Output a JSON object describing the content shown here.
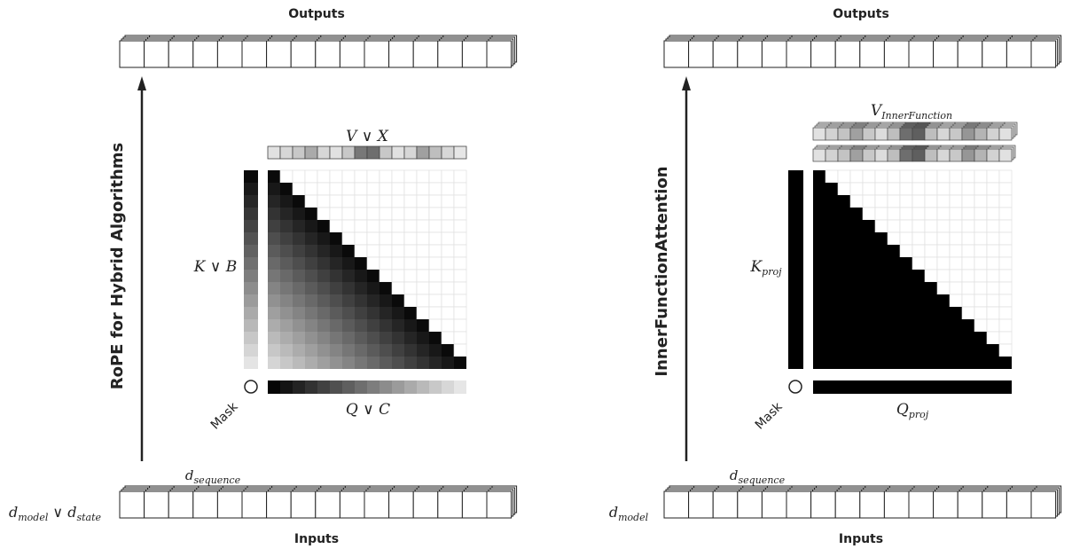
{
  "left": {
    "title": "RoPE for Hybrid Algorithms",
    "outputs": "Outputs",
    "inputs": "Inputs",
    "d_sequence": "d",
    "d_sequence_sub": "sequence",
    "d_model_1": "d",
    "d_model_1_sub": "model",
    "d_model_or": " ∨ d",
    "d_model_2_sub": "state",
    "v_label": "V ∨ X",
    "k_label": "K ∨ B",
    "q_label": "Q ∨ C",
    "mask": "Mask"
  },
  "right": {
    "title": "InnerFunctionAttention",
    "outputs": "Outputs",
    "inputs": "Inputs",
    "d_sequence": "d",
    "d_sequence_sub": "sequence",
    "d_model": "d",
    "d_model_sub": "model",
    "v_label": "V",
    "v_label_sub": "InnerFunction",
    "k_label": "K",
    "k_label_sub": "proj",
    "q_label": "Q",
    "q_label_sub": "proj",
    "mask": "Mask"
  },
  "colors": {
    "stroke": "#222222",
    "mask_fill": "#000000"
  }
}
